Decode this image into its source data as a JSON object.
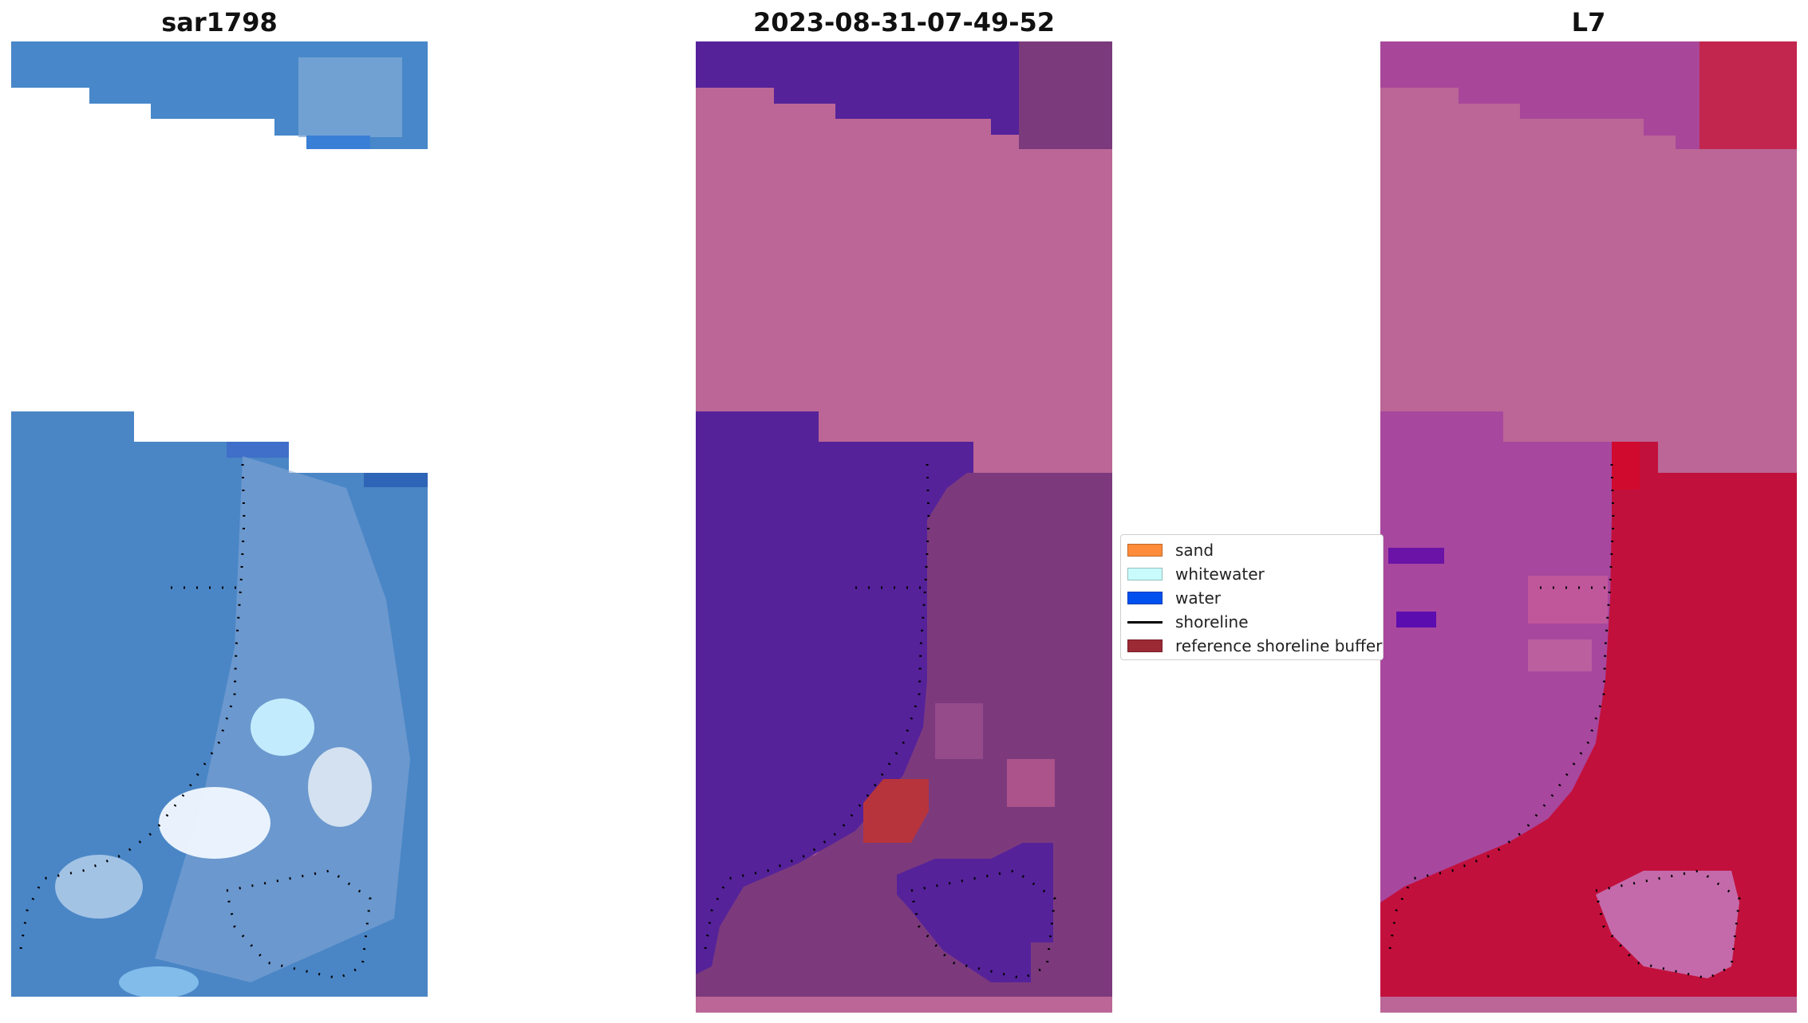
{
  "panels": [
    {
      "title": "sar1798"
    },
    {
      "title": "2023-08-31-07-49-52"
    },
    {
      "title": "L7"
    }
  ],
  "legend": {
    "items": [
      {
        "label": "sand",
        "color": "#ff8c3a",
        "kind": "patch"
      },
      {
        "label": "whitewater",
        "color": "#c8fcfc",
        "kind": "patch"
      },
      {
        "label": "water",
        "color": "#0050f0",
        "kind": "patch"
      },
      {
        "label": "shoreline",
        "color": "#000000",
        "kind": "line"
      },
      {
        "label": "reference shoreline buffer",
        "color": "#9b2a35",
        "kind": "patch"
      }
    ]
  },
  "colors": {
    "rgb_water": "#4a86c8",
    "rgb_water_light": "#8fb0dc",
    "rgb_whitewater": "#eef8ff",
    "class_water_overlay": "#55229a",
    "class_nodata_overlay": "#bb6696",
    "class_land": "#7a3a7c",
    "class_buffer": "#b8343c",
    "ndwi_pink": "#b8509a",
    "ndwi_red": "#c2103c"
  }
}
